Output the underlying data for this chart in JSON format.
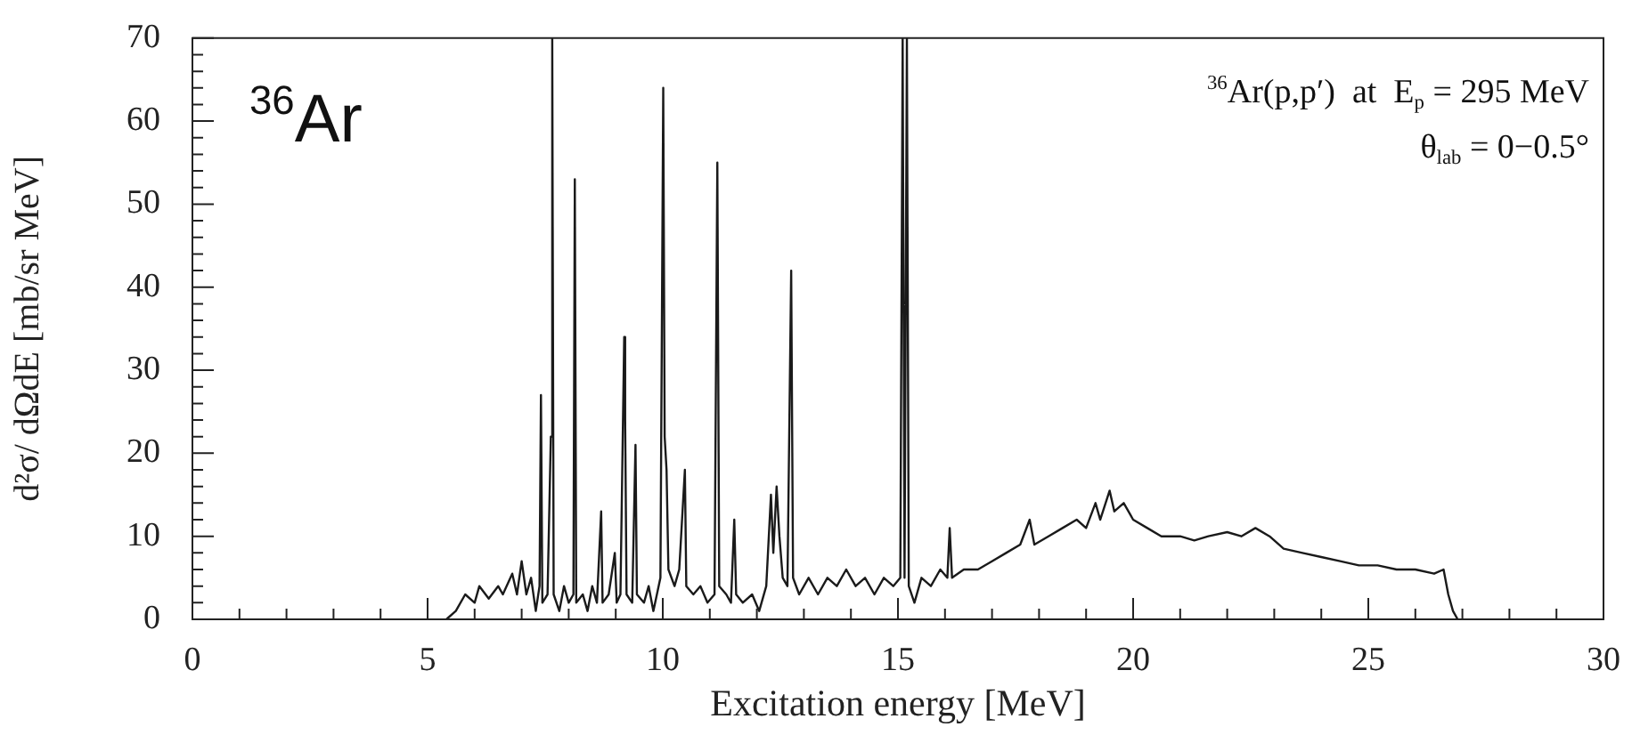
{
  "chart_data": {
    "type": "line",
    "xlabel": "Excitation energy [MeV]",
    "ylabel": "d²σ/ dΩdE [mb/sr MeV]",
    "annotations": [
      "$^{36}$Ar",
      "$^{36}$Ar(p,p′)  at  E$_{p}$ = 295 MeV",
      "θ$_{lab}$ = 0−0.5°"
    ],
    "xlim": [
      0,
      30
    ],
    "ylim": [
      0,
      70
    ],
    "xticks": [
      0,
      {
        "value": 1,
        "label": null
      },
      {
        "value": 2,
        "label": null
      },
      {
        "value": 3,
        "label": null
      },
      {
        "value": 4,
        "label": null
      },
      5,
      {
        "value": 6,
        "label": null
      },
      {
        "value": 7,
        "label": null
      },
      {
        "value": 8,
        "label": null
      },
      {
        "value": 9,
        "label": null
      },
      10,
      {
        "value": 11,
        "label": null
      },
      {
        "value": 12,
        "label": null
      },
      {
        "value": 13,
        "label": null
      },
      {
        "value": 14,
        "label": null
      },
      15,
      {
        "value": 16,
        "label": null
      },
      {
        "value": 17,
        "label": null
      },
      {
        "value": 18,
        "label": null
      },
      {
        "value": 19,
        "label": null
      },
      20,
      {
        "value": 21,
        "label": null
      },
      {
        "value": 22,
        "label": null
      },
      {
        "value": 23,
        "label": null
      },
      {
        "value": 24,
        "label": null
      },
      25,
      {
        "value": 26,
        "label": null
      },
      {
        "value": 27,
        "label": null
      },
      {
        "value": 28,
        "label": null
      },
      {
        "value": 29,
        "label": null
      },
      30
    ],
    "yticks": [
      0,
      {
        "value": 2,
        "label": null
      },
      {
        "value": 4,
        "label": null
      },
      {
        "value": 6,
        "label": null
      },
      {
        "value": 8,
        "label": null
      },
      10,
      {
        "value": 12,
        "label": null
      },
      {
        "value": 14,
        "label": null
      },
      {
        "value": 16,
        "label": null
      },
      {
        "value": 18,
        "label": null
      },
      20,
      {
        "value": 22,
        "label": null
      },
      {
        "value": 24,
        "label": null
      },
      {
        "value": 26,
        "label": null
      },
      {
        "value": 28,
        "label": null
      },
      30,
      {
        "value": 32,
        "label": null
      },
      {
        "value": 34,
        "label": null
      },
      {
        "value": 36,
        "label": null
      },
      {
        "value": 38,
        "label": null
      },
      40,
      {
        "value": 42,
        "label": null
      },
      {
        "value": 44,
        "label": null
      },
      {
        "value": 46,
        "label": null
      },
      {
        "value": 48,
        "label": null
      },
      50,
      {
        "value": 52,
        "label": null
      },
      {
        "value": 54,
        "label": null
      },
      {
        "value": 56,
        "label": null
      },
      {
        "value": 58,
        "label": null
      },
      60,
      {
        "value": 62,
        "label": null
      },
      {
        "value": 64,
        "label": null
      },
      {
        "value": 66,
        "label": null
      },
      {
        "value": 68,
        "label": null
      },
      70
    ],
    "grid": false,
    "legend": false,
    "marker": "none",
    "line_style": "solid",
    "series": [
      {
        "color": "#1a1a1a",
        "x": [
          5.4,
          5.6,
          5.8,
          6.0,
          6.1,
          6.3,
          6.5,
          6.6,
          6.8,
          6.9,
          7.0,
          7.1,
          7.2,
          7.3,
          7.38,
          7.41,
          7.44,
          7.55,
          7.62,
          7.65,
          7.68,
          7.8,
          7.9,
          8.0,
          8.1,
          8.13,
          8.16,
          8.3,
          8.4,
          8.5,
          8.6,
          8.69,
          8.72,
          8.85,
          8.98,
          9.02,
          9.1,
          9.18,
          9.2,
          9.23,
          9.35,
          9.42,
          9.45,
          9.6,
          9.7,
          9.8,
          9.95,
          10.01,
          10.04,
          10.08,
          10.12,
          10.25,
          10.35,
          10.47,
          10.5,
          10.65,
          10.8,
          10.95,
          11.1,
          11.16,
          11.2,
          11.35,
          11.45,
          11.52,
          11.56,
          11.7,
          11.9,
          12.05,
          12.2,
          12.3,
          12.35,
          12.42,
          12.48,
          12.55,
          12.65,
          12.73,
          12.77,
          12.9,
          13.1,
          13.3,
          13.5,
          13.7,
          13.9,
          14.1,
          14.3,
          14.5,
          14.7,
          14.9,
          15.05,
          15.1,
          15.14,
          15.19,
          15.23,
          15.35,
          15.5,
          15.7,
          15.9,
          16.05,
          16.1,
          16.15,
          16.4,
          16.7,
          17.0,
          17.3,
          17.6,
          17.8,
          17.9,
          18.2,
          18.5,
          18.8,
          19.0,
          19.2,
          19.3,
          19.5,
          19.6,
          19.8,
          20.0,
          20.3,
          20.6,
          21.0,
          21.3,
          21.6,
          22.0,
          22.3,
          22.6,
          22.9,
          23.2,
          23.6,
          24.0,
          24.4,
          24.8,
          25.2,
          25.6,
          26.0,
          26.4,
          26.6,
          26.7,
          26.8,
          26.9
        ],
        "values": [
          0,
          1,
          3,
          2,
          4,
          2.5,
          4,
          3,
          5.5,
          3,
          7,
          3,
          5,
          1,
          4,
          27,
          2,
          3,
          22,
          70,
          3,
          1,
          4,
          2,
          3,
          53,
          2,
          3,
          1,
          4,
          2,
          13,
          2,
          3,
          8,
          2,
          3,
          34,
          24,
          3,
          2,
          21,
          3,
          2,
          4,
          1,
          5,
          64,
          22,
          18,
          6,
          4,
          6,
          18,
          4,
          3,
          4,
          2,
          3,
          55,
          4,
          3,
          2,
          12,
          3,
          2,
          3,
          1,
          4,
          15,
          8,
          16,
          10,
          5,
          4,
          42,
          5,
          3,
          5,
          3,
          5,
          4,
          6,
          4,
          5,
          3,
          5,
          4,
          5,
          70,
          5,
          70,
          4,
          2,
          5,
          4,
          6,
          5,
          11,
          5,
          6,
          6,
          7,
          8,
          9,
          12,
          9,
          10,
          11,
          12,
          11,
          14,
          12,
          15.5,
          13,
          14,
          12,
          11,
          10,
          10,
          9.5,
          10,
          10.5,
          10,
          11,
          10,
          8.5,
          8,
          7.5,
          7,
          6.5,
          6.5,
          6,
          6,
          5.5,
          6,
          3,
          1,
          0
        ]
      }
    ]
  }
}
